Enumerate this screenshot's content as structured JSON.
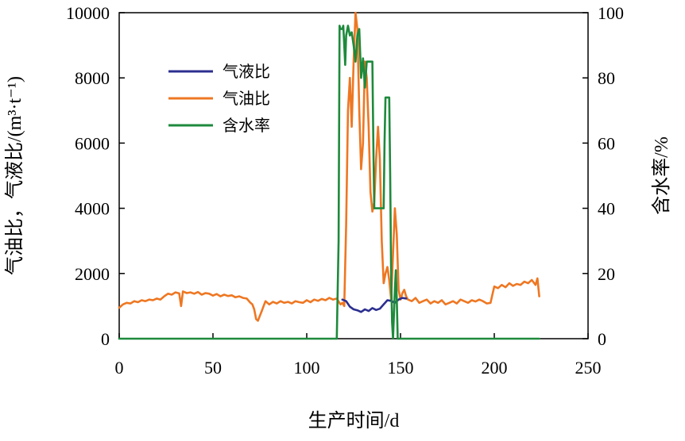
{
  "chart_data": {
    "type": "line",
    "xlabel": "生产时间/d",
    "ylabel_left": "气油比，气液比/(m³·t⁻¹)",
    "ylabel_right": "含水率/%",
    "xlim": [
      0,
      250
    ],
    "ylim_left": [
      0,
      10000
    ],
    "ylim_right": [
      0,
      100
    ],
    "x_ticks": [
      "0",
      "50",
      "100",
      "150",
      "200",
      "250"
    ],
    "y_left_ticks": [
      "0",
      "2000",
      "4000",
      "6000",
      "8000",
      "10000"
    ],
    "y_right_ticks": [
      "0",
      "20",
      "40",
      "60",
      "80",
      "100"
    ],
    "grid": false,
    "legend_position": "upper-left",
    "series": [
      {
        "name": "气液比",
        "color": "#2b2f8f",
        "axis": "left",
        "points": [
          [
            119,
            1200
          ],
          [
            121,
            1150
          ],
          [
            123,
            980
          ],
          [
            125,
            900
          ],
          [
            127,
            870
          ],
          [
            129,
            820
          ],
          [
            131,
            900
          ],
          [
            133,
            850
          ],
          [
            135,
            940
          ],
          [
            137,
            880
          ],
          [
            139,
            920
          ],
          [
            141,
            1050
          ],
          [
            143,
            1180
          ],
          [
            145,
            1160
          ],
          [
            147,
            1100
          ],
          [
            149,
            1200
          ],
          [
            151,
            1250
          ],
          [
            153,
            1230
          ]
        ]
      },
      {
        "name": "气油比",
        "color": "#ee7722",
        "axis": "left",
        "points": [
          [
            0,
            950
          ],
          [
            2,
            1050
          ],
          [
            4,
            1100
          ],
          [
            6,
            1080
          ],
          [
            8,
            1150
          ],
          [
            10,
            1120
          ],
          [
            12,
            1180
          ],
          [
            14,
            1150
          ],
          [
            16,
            1200
          ],
          [
            18,
            1180
          ],
          [
            20,
            1230
          ],
          [
            22,
            1200
          ],
          [
            24,
            1300
          ],
          [
            26,
            1380
          ],
          [
            28,
            1350
          ],
          [
            30,
            1420
          ],
          [
            32,
            1390
          ],
          [
            33,
            1000
          ],
          [
            34,
            1450
          ],
          [
            36,
            1400
          ],
          [
            38,
            1420
          ],
          [
            40,
            1380
          ],
          [
            42,
            1430
          ],
          [
            44,
            1350
          ],
          [
            46,
            1400
          ],
          [
            48,
            1380
          ],
          [
            50,
            1320
          ],
          [
            52,
            1370
          ],
          [
            54,
            1300
          ],
          [
            56,
            1350
          ],
          [
            58,
            1310
          ],
          [
            60,
            1330
          ],
          [
            62,
            1270
          ],
          [
            64,
            1300
          ],
          [
            66,
            1250
          ],
          [
            68,
            1230
          ],
          [
            70,
            1100
          ],
          [
            71,
            1050
          ],
          [
            72,
            900
          ],
          [
            73,
            600
          ],
          [
            74,
            550
          ],
          [
            75,
            700
          ],
          [
            76,
            850
          ],
          [
            77,
            1000
          ],
          [
            78,
            1150
          ],
          [
            80,
            1050
          ],
          [
            82,
            1130
          ],
          [
            84,
            1080
          ],
          [
            86,
            1150
          ],
          [
            88,
            1100
          ],
          [
            90,
            1130
          ],
          [
            92,
            1080
          ],
          [
            94,
            1150
          ],
          [
            96,
            1120
          ],
          [
            98,
            1100
          ],
          [
            100,
            1180
          ],
          [
            102,
            1120
          ],
          [
            104,
            1200
          ],
          [
            106,
            1160
          ],
          [
            108,
            1220
          ],
          [
            110,
            1180
          ],
          [
            112,
            1250
          ],
          [
            114,
            1200
          ],
          [
            116,
            1230
          ],
          [
            118,
            1050
          ],
          [
            119,
            1100
          ],
          [
            120,
            1000
          ],
          [
            121,
            3500
          ],
          [
            122,
            7000
          ],
          [
            123,
            8000
          ],
          [
            124,
            6500
          ],
          [
            125,
            8500
          ],
          [
            126,
            10000
          ],
          [
            127,
            9500
          ],
          [
            128,
            7000
          ],
          [
            129,
            5200
          ],
          [
            130,
            6000
          ],
          [
            131,
            8500
          ],
          [
            132,
            8000
          ],
          [
            133,
            6500
          ],
          [
            134,
            4500
          ],
          [
            135,
            3900
          ],
          [
            136,
            4200
          ],
          [
            137,
            5500
          ],
          [
            138,
            6500
          ],
          [
            139,
            5500
          ],
          [
            140,
            3000
          ],
          [
            141,
            1700
          ],
          [
            142,
            2000
          ],
          [
            143,
            2200
          ],
          [
            144,
            1800
          ],
          [
            145,
            1200
          ],
          [
            146,
            2600
          ],
          [
            147,
            4000
          ],
          [
            148,
            3200
          ],
          [
            149,
            1500
          ],
          [
            150,
            1200
          ],
          [
            151,
            1400
          ],
          [
            152,
            1500
          ],
          [
            153,
            1300
          ],
          [
            154,
            1200
          ],
          [
            156,
            1150
          ],
          [
            158,
            1250
          ],
          [
            160,
            1100
          ],
          [
            162,
            1150
          ],
          [
            164,
            1200
          ],
          [
            166,
            1080
          ],
          [
            168,
            1150
          ],
          [
            170,
            1100
          ],
          [
            172,
            1180
          ],
          [
            174,
            1050
          ],
          [
            176,
            1100
          ],
          [
            178,
            1150
          ],
          [
            180,
            1080
          ],
          [
            182,
            1200
          ],
          [
            184,
            1150
          ],
          [
            186,
            1100
          ],
          [
            188,
            1180
          ],
          [
            190,
            1140
          ],
          [
            192,
            1200
          ],
          [
            194,
            1150
          ],
          [
            196,
            1080
          ],
          [
            198,
            1100
          ],
          [
            199,
            1350
          ],
          [
            200,
            1600
          ],
          [
            202,
            1550
          ],
          [
            204,
            1650
          ],
          [
            206,
            1580
          ],
          [
            208,
            1700
          ],
          [
            210,
            1620
          ],
          [
            212,
            1680
          ],
          [
            214,
            1650
          ],
          [
            216,
            1750
          ],
          [
            218,
            1700
          ],
          [
            220,
            1800
          ],
          [
            222,
            1650
          ],
          [
            223,
            1850
          ],
          [
            224,
            1300
          ]
        ]
      },
      {
        "name": "含水率",
        "color": "#1e8a3c",
        "axis": "right",
        "points": [
          [
            0,
            0
          ],
          [
            116,
            0
          ],
          [
            117,
            30
          ],
          [
            117.5,
            96
          ],
          [
            118,
            95
          ],
          [
            119,
            95
          ],
          [
            119.5,
            96
          ],
          [
            120,
            90
          ],
          [
            120.5,
            84
          ],
          [
            121,
            93
          ],
          [
            122,
            96
          ],
          [
            123,
            93
          ],
          [
            124,
            94
          ],
          [
            125,
            90
          ],
          [
            126,
            85
          ],
          [
            127,
            93
          ],
          [
            128,
            95
          ],
          [
            129,
            80
          ],
          [
            130,
            86
          ],
          [
            131,
            77
          ],
          [
            132,
            85
          ],
          [
            133,
            85
          ],
          [
            134,
            85
          ],
          [
            135,
            85
          ],
          [
            135.5,
            60
          ],
          [
            136,
            40
          ],
          [
            137,
            40
          ],
          [
            138,
            40
          ],
          [
            139,
            40
          ],
          [
            140,
            40
          ],
          [
            141,
            40
          ],
          [
            141.5,
            60
          ],
          [
            142,
            74
          ],
          [
            143,
            74
          ],
          [
            144,
            74
          ],
          [
            144.5,
            50
          ],
          [
            145,
            20
          ],
          [
            145.5,
            5
          ],
          [
            146,
            0
          ],
          [
            147,
            15
          ],
          [
            147.5,
            21
          ],
          [
            148,
            12
          ],
          [
            148.5,
            0
          ],
          [
            149,
            0
          ],
          [
            224,
            0
          ]
        ]
      }
    ]
  }
}
